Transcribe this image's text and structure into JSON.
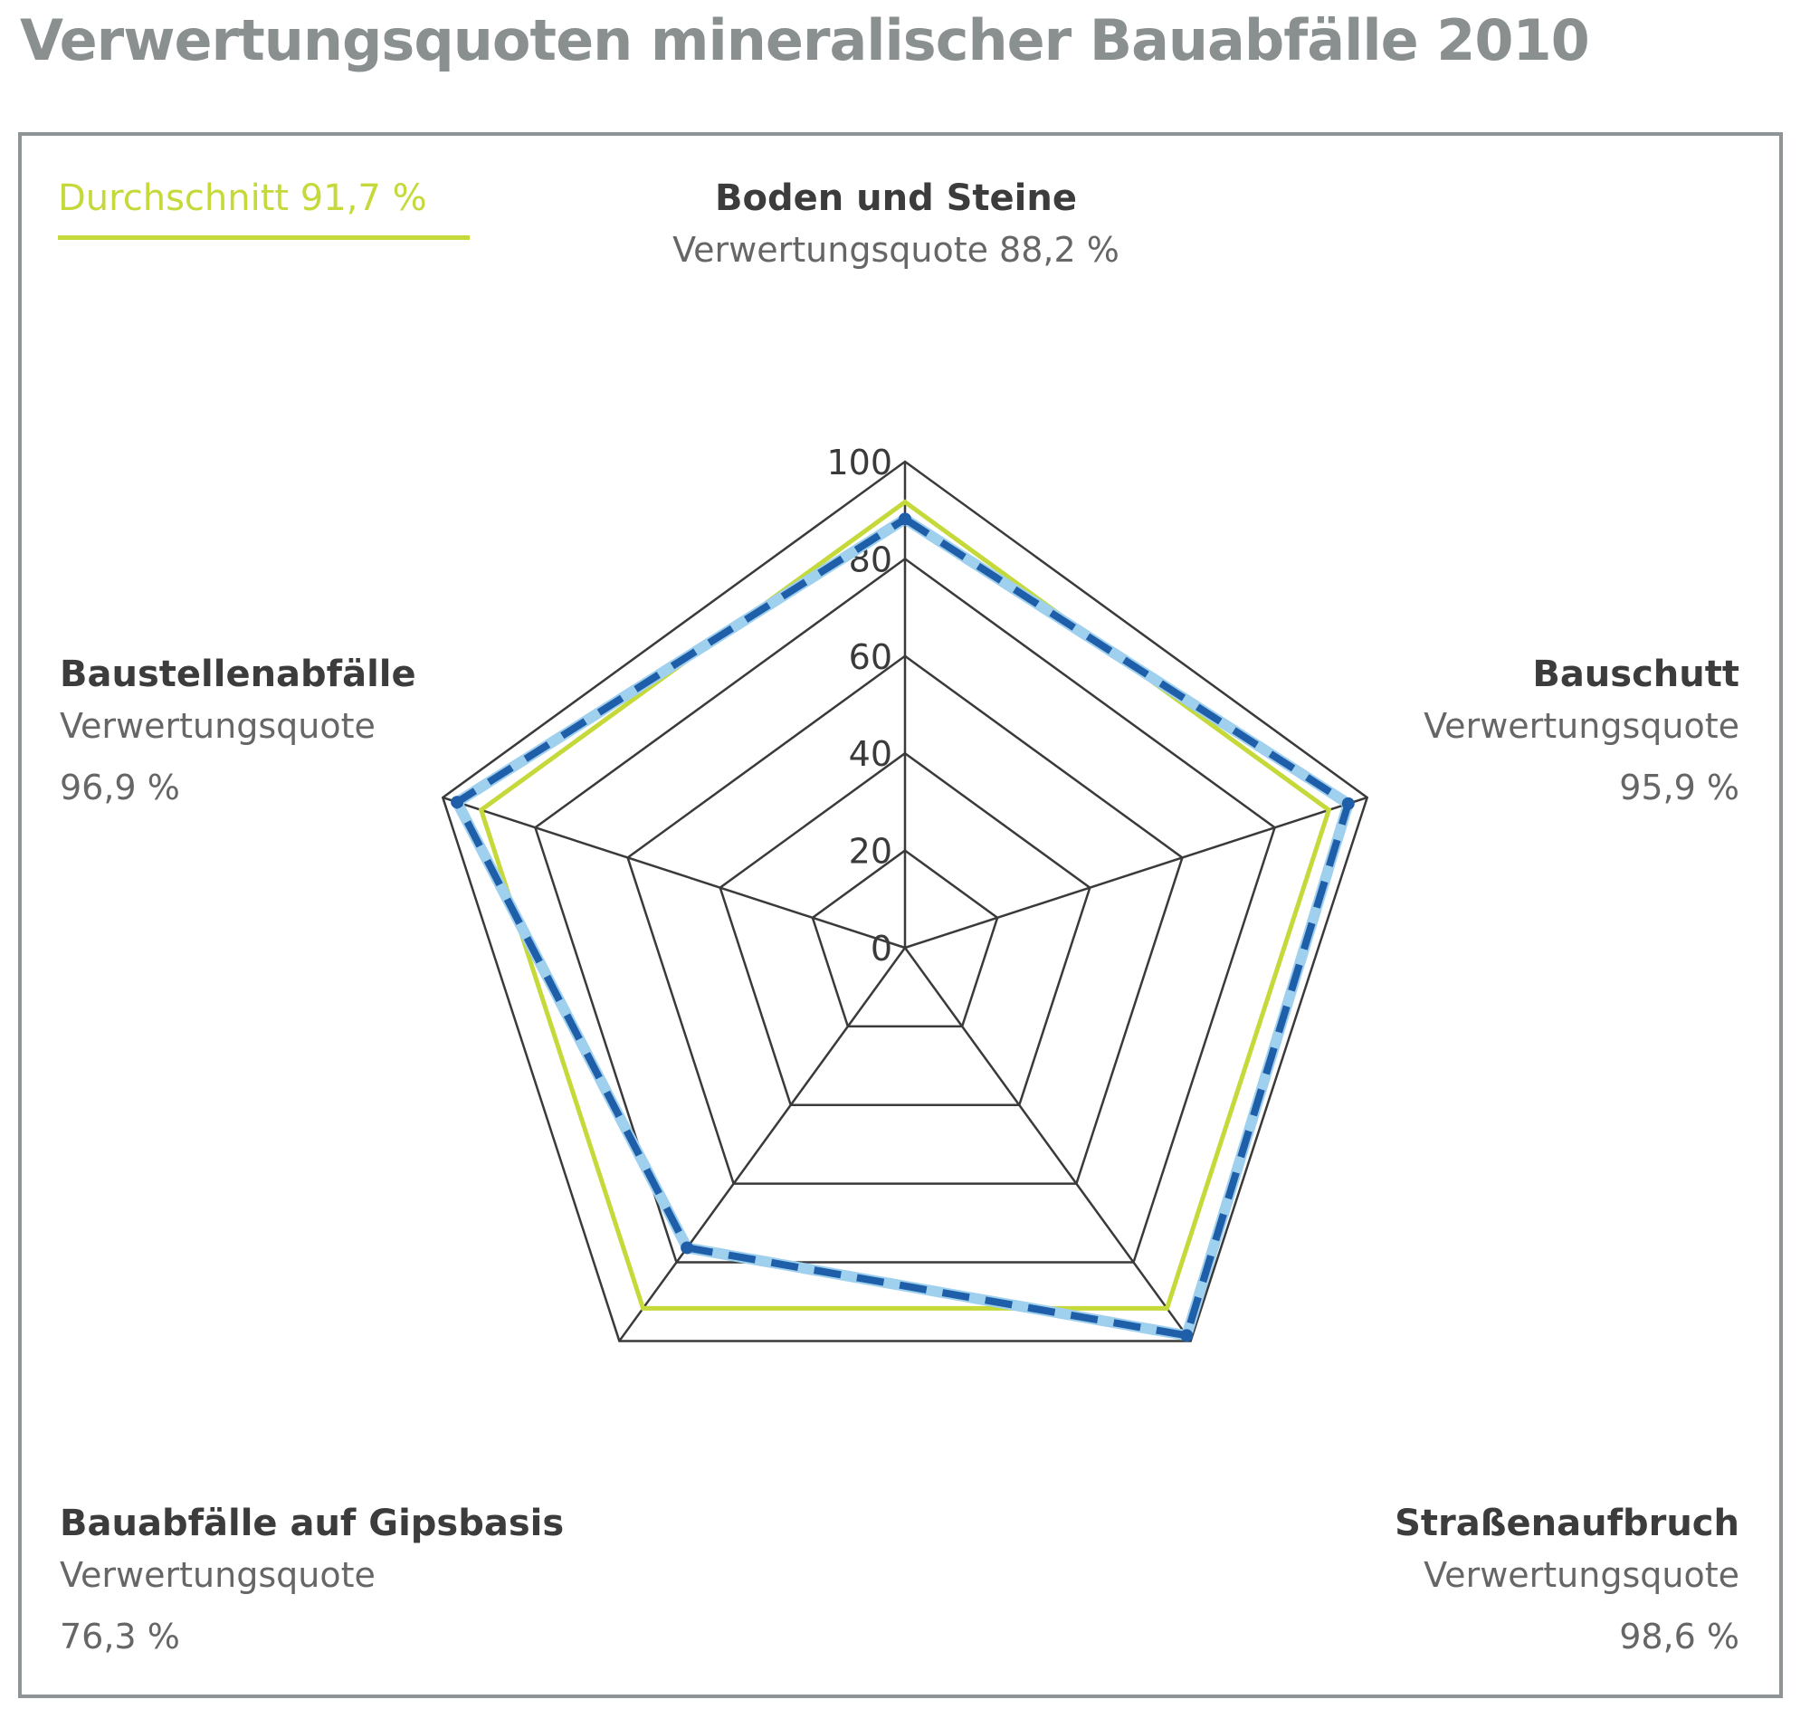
{
  "title": "Verwertungsquoten mineralischer Bauabfälle 2010",
  "legend": {
    "average_label": "Durchschnitt 91,7 %"
  },
  "colors": {
    "average": "#c6d93a",
    "series": "#1f5ea8",
    "series_outline": "#9fd0ee",
    "grid": "#3a3a3a"
  },
  "chart_data": {
    "type": "radar",
    "title": "Verwertungsquoten mineralischer Bauabfälle 2010",
    "categories": [
      "Boden und Steine",
      "Bauschutt",
      "Straßenaufbruch",
      "Bauabfälle auf Gipsbasis",
      "Baustellenabfälle"
    ],
    "r_ticks": [
      "0",
      "20",
      "40",
      "60",
      "80",
      "100"
    ],
    "rlim": [
      0,
      100
    ],
    "average": 91.7,
    "series": [
      {
        "values": [
          88.2,
          95.9,
          98.6,
          76.3,
          96.9
        ]
      }
    ],
    "labels": [
      {
        "name": "Boden und Steine",
        "quota_text": "Verwertungsquote 88,2 %"
      },
      {
        "name": "Bauschutt",
        "quota_text": "Verwertungsquote",
        "value_text": "95,9 %"
      },
      {
        "name": "Straßenaufbruch",
        "quota_text": "Verwertungsquote",
        "value_text": "98,6 %"
      },
      {
        "name": "Bauabfälle auf Gipsbasis",
        "quota_text": "Verwertungsquote",
        "value_text": "76,3 %"
      },
      {
        "name": "Baustellenabfälle",
        "quota_text": "Verwertungsquote",
        "value_text": "96,9 %"
      }
    ]
  }
}
